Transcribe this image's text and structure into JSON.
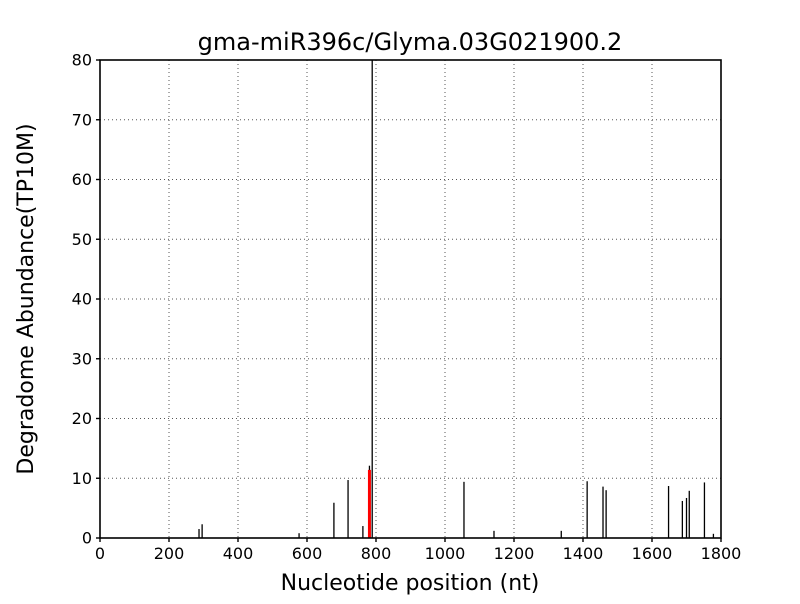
{
  "chart_data": {
    "type": "bar",
    "title": "gma-miR396c/Glyma.03G021900.2",
    "xlabel": "Nucleotide position (nt)",
    "ylabel": "Degradome Abundance(TP10M)",
    "xlim": [
      0,
      1800
    ],
    "ylim": [
      0,
      80
    ],
    "xticks": [
      0,
      200,
      400,
      600,
      800,
      1000,
      1200,
      1400,
      1600,
      1800
    ],
    "yticks": [
      0,
      10,
      20,
      30,
      40,
      50,
      60,
      70,
      80
    ],
    "grid": {
      "show": true,
      "style": "dotted"
    },
    "legend": "none",
    "series": [
      {
        "name": "degradome-peaks",
        "color": "#000000",
        "line_width": 1.3,
        "points": [
          {
            "x": 287,
            "y": 1.5
          },
          {
            "x": 296,
            "y": 2.3
          },
          {
            "x": 577,
            "y": 0.8
          },
          {
            "x": 678,
            "y": 5.9
          },
          {
            "x": 719,
            "y": 9.7
          },
          {
            "x": 762,
            "y": 2.0
          },
          {
            "x": 781,
            "y": 12.1
          },
          {
            "x": 789,
            "y": 80,
            "clipped": true
          },
          {
            "x": 1055,
            "y": 9.4
          },
          {
            "x": 1142,
            "y": 1.2
          },
          {
            "x": 1337,
            "y": 1.2
          },
          {
            "x": 1412,
            "y": 9.5
          },
          {
            "x": 1458,
            "y": 8.6
          },
          {
            "x": 1467,
            "y": 8.0
          },
          {
            "x": 1648,
            "y": 8.7
          },
          {
            "x": 1688,
            "y": 6.2
          },
          {
            "x": 1700,
            "y": 6.7
          },
          {
            "x": 1708,
            "y": 7.9
          },
          {
            "x": 1752,
            "y": 9.3
          },
          {
            "x": 1778,
            "y": 0.7
          }
        ]
      },
      {
        "name": "mirna-cleavage-site",
        "color": "#ff0000",
        "line_width": 3,
        "points": [
          {
            "x": 781,
            "y": 11.4
          }
        ]
      }
    ],
    "colors": {
      "peak": "#000000",
      "cleavage_site": "#ff0000",
      "grid": "#555555",
      "frame": "#000000",
      "background": "#ffffff"
    }
  }
}
